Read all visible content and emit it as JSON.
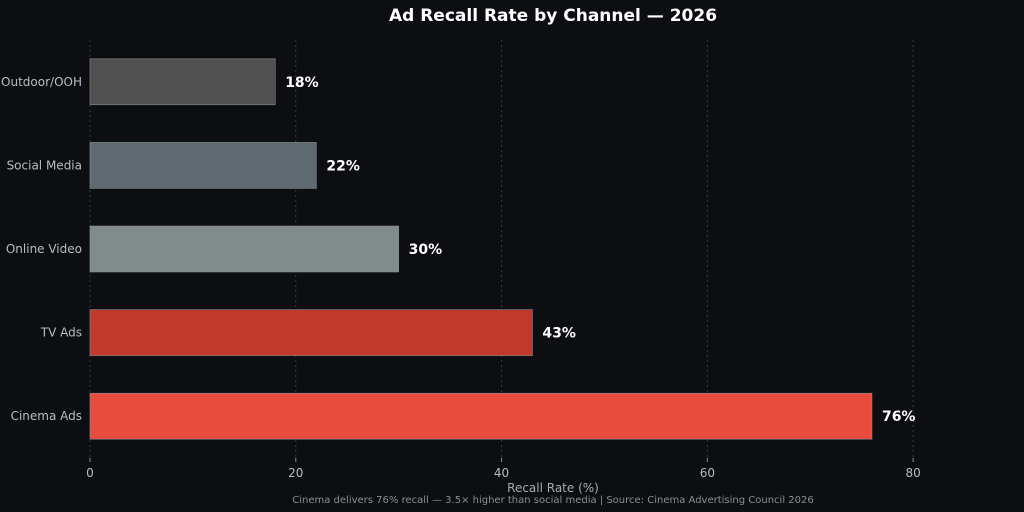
{
  "chart_data": {
    "type": "bar",
    "orientation": "horizontal",
    "title": "Ad Recall Rate by Channel — 2026",
    "xlabel": "Recall Rate (%)",
    "ylabel": "",
    "xlim": [
      0,
      90
    ],
    "x_ticks": [
      0,
      20,
      40,
      60,
      80
    ],
    "grid": "vertical dashed",
    "categories": [
      "Outdoor/OOH",
      "Social Media",
      "Online Video",
      "TV Ads",
      "Cinema Ads"
    ],
    "values": [
      18,
      22,
      30,
      43,
      76
    ],
    "value_labels": [
      "18%",
      "22%",
      "30%",
      "43%",
      "76%"
    ],
    "colors": [
      "#505050",
      "#5f6b70",
      "#7f8c8a",
      "#c0392b",
      "#e74c3c"
    ],
    "footnote": "Cinema delivers 76% recall — 3.5× higher than social media | Source: Cinema Advertising Council 2026"
  }
}
